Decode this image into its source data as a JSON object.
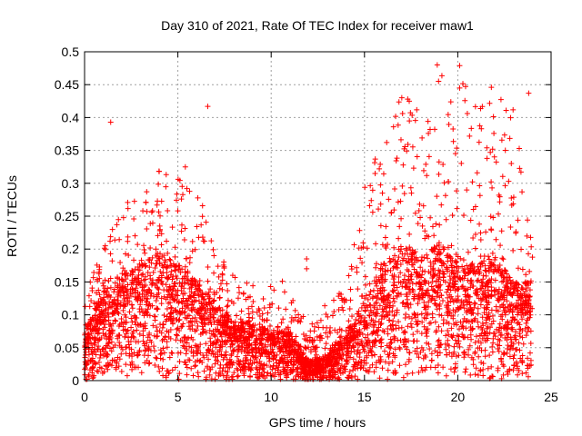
{
  "chart_data": {
    "type": "scatter",
    "title": "Day 310 of 2021, Rate Of TEC Index for receiver maw1",
    "xlabel": "GPS time / hours",
    "ylabel": "ROTI / TECUs",
    "xlim": [
      0,
      25
    ],
    "ylim": [
      0,
      0.5
    ],
    "x_ticks": [
      "0",
      "5",
      "10",
      "15",
      "20",
      "25"
    ],
    "y_ticks": [
      "0",
      "0.05",
      "0.1",
      "0.15",
      "0.2",
      "0.25",
      "0.3",
      "0.35",
      "0.4",
      "0.45",
      "0.5"
    ],
    "grid": true,
    "marker": "+",
    "series_color": "#ff0000",
    "envelope": {
      "x": [
        0,
        1,
        2,
        3,
        4,
        5,
        6,
        7,
        8,
        9,
        10,
        11,
        12,
        13,
        14,
        15,
        16,
        17,
        18,
        19,
        20,
        21,
        22,
        23,
        24
      ],
      "typical_y": [
        0.05,
        0.09,
        0.11,
        0.12,
        0.13,
        0.12,
        0.1,
        0.08,
        0.06,
        0.06,
        0.05,
        0.05,
        0.02,
        0.025,
        0.05,
        0.08,
        0.12,
        0.14,
        0.13,
        0.14,
        0.12,
        0.12,
        0.13,
        0.1,
        0.1
      ],
      "max_y": [
        0.13,
        0.2,
        0.27,
        0.28,
        0.32,
        0.32,
        0.3,
        0.2,
        0.16,
        0.15,
        0.16,
        0.15,
        0.08,
        0.12,
        0.15,
        0.3,
        0.39,
        0.43,
        0.44,
        0.48,
        0.48,
        0.42,
        0.44,
        0.44,
        0.2
      ]
    },
    "notable_points": [
      {
        "x": 1.4,
        "y": 0.393
      },
      {
        "x": 6.6,
        "y": 0.417
      },
      {
        "x": 18.9,
        "y": 0.48
      },
      {
        "x": 20.1,
        "y": 0.479
      },
      {
        "x": 21.8,
        "y": 0.446
      },
      {
        "x": 20.1,
        "y": 0.445
      },
      {
        "x": 23.8,
        "y": 0.437
      },
      {
        "x": 17.0,
        "y": 0.43
      },
      {
        "x": 4.0,
        "y": 0.318
      },
      {
        "x": 5.4,
        "y": 0.325
      },
      {
        "x": 11.9,
        "y": 0.17
      },
      {
        "x": 11.9,
        "y": 0.185
      }
    ]
  }
}
